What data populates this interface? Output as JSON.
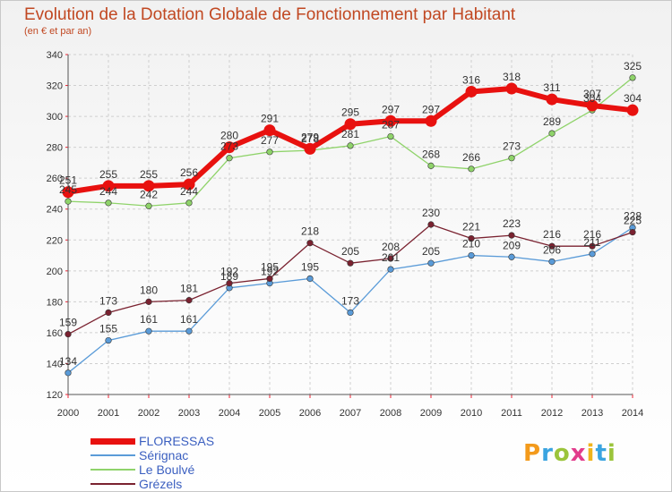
{
  "chart_data": {
    "type": "line",
    "title": "Evolution de la Dotation Globale de Fonctionnement par Habitant",
    "subtitle": "(en € et par an)",
    "x": [
      "2000",
      "2001",
      "2002",
      "2003",
      "2004",
      "2005",
      "2006",
      "2007",
      "2008",
      "2009",
      "2010",
      "2011",
      "2012",
      "2013",
      "2014"
    ],
    "ylim": [
      120,
      340
    ],
    "yticks": [
      120,
      140,
      160,
      180,
      200,
      220,
      240,
      260,
      280,
      300,
      320,
      340
    ],
    "grid": true,
    "legend_position": "bottom-left",
    "series": [
      {
        "name": "FLORESSAS",
        "color": "#e8110f",
        "values": [
          251,
          255,
          255,
          256,
          280,
          291,
          279,
          295,
          297,
          297,
          316,
          318,
          311,
          307,
          304
        ]
      },
      {
        "name": "Sérignac",
        "color": "#5a9bd8",
        "values": [
          134,
          155,
          161,
          161,
          189,
          192,
          195,
          173,
          201,
          205,
          210,
          209,
          206,
          211,
          228
        ]
      },
      {
        "name": "Le Boulvé",
        "color": "#8fd36a",
        "values": [
          245,
          244,
          242,
          244,
          273,
          277,
          278,
          281,
          287,
          268,
          266,
          273,
          289,
          304,
          325
        ]
      },
      {
        "name": "Grézels",
        "color": "#7a2230",
        "values": [
          159,
          173,
          180,
          181,
          192,
          195,
          218,
          205,
          208,
          230,
          221,
          223,
          216,
          216,
          225
        ]
      }
    ]
  },
  "logo_text": "Proxiti",
  "colors": {
    "title": "#c14822",
    "legend_text": "#3b5fc0",
    "grid": "#cfcfcf"
  }
}
